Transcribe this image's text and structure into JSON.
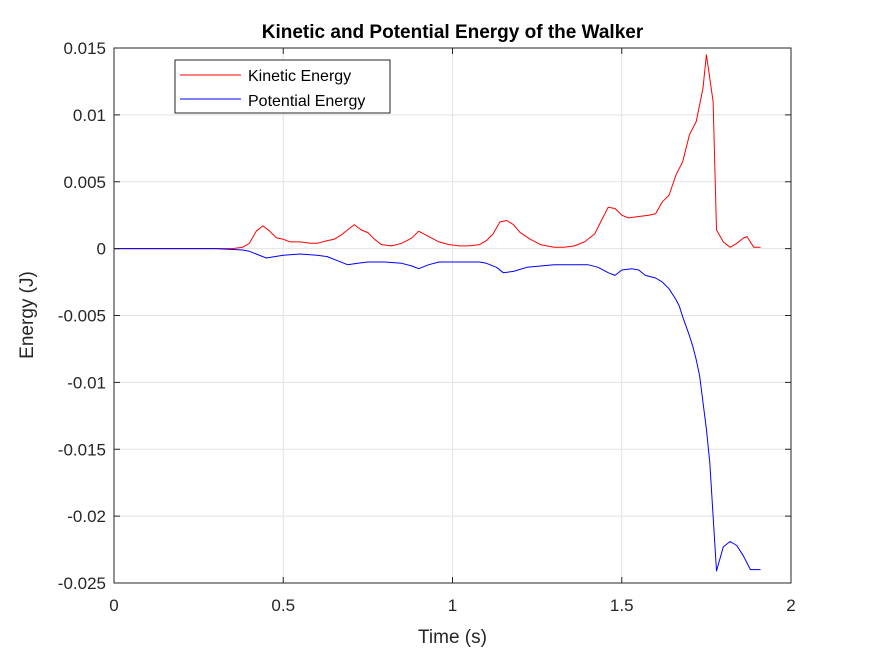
{
  "chart_data": {
    "type": "line",
    "title": "Kinetic and Potential Energy of the Walker",
    "xlabel": "Time (s)",
    "ylabel": "Energy (J)",
    "xlim": [
      0,
      2
    ],
    "ylim": [
      -0.025,
      0.015
    ],
    "xticks": [
      0,
      0.5,
      1,
      1.5,
      2
    ],
    "xtick_labels": [
      "0",
      "0.5",
      "1",
      "1.5",
      "2"
    ],
    "yticks": [
      -0.025,
      -0.02,
      -0.015,
      -0.01,
      -0.005,
      0,
      0.005,
      0.01,
      0.015
    ],
    "ytick_labels": [
      "-0.025",
      "-0.02",
      "-0.015",
      "-0.01",
      "-0.005",
      "0",
      "0.005",
      "0.01",
      "0.015"
    ],
    "grid": true,
    "legend_position": "top-left",
    "series": [
      {
        "name": "Kinetic Energy",
        "color": "#ff0000",
        "x": [
          0,
          0.1,
          0.2,
          0.3,
          0.35,
          0.38,
          0.4,
          0.42,
          0.44,
          0.46,
          0.48,
          0.5,
          0.52,
          0.55,
          0.58,
          0.6,
          0.63,
          0.65,
          0.67,
          0.69,
          0.71,
          0.73,
          0.75,
          0.77,
          0.79,
          0.82,
          0.85,
          0.88,
          0.9,
          0.93,
          0.96,
          0.99,
          1.02,
          1.05,
          1.08,
          1.1,
          1.12,
          1.14,
          1.16,
          1.18,
          1.2,
          1.23,
          1.26,
          1.3,
          1.33,
          1.36,
          1.39,
          1.42,
          1.44,
          1.46,
          1.48,
          1.5,
          1.52,
          1.55,
          1.58,
          1.6,
          1.62,
          1.64,
          1.66,
          1.68,
          1.7,
          1.72,
          1.74,
          1.75,
          1.77,
          1.78,
          1.8,
          1.82,
          1.84,
          1.86,
          1.87,
          1.89,
          1.91
        ],
        "y": [
          0,
          0,
          0,
          0,
          0,
          0.0001,
          0.0004,
          0.0013,
          0.0017,
          0.0013,
          0.0008,
          0.0007,
          0.0005,
          0.0005,
          0.0004,
          0.0004,
          0.0006,
          0.0007,
          0.001,
          0.0014,
          0.0018,
          0.0014,
          0.0012,
          0.0007,
          0.0003,
          0.0002,
          0.0004,
          0.0008,
          0.0013,
          0.0009,
          0.0005,
          0.0003,
          0.0002,
          0.0002,
          0.0003,
          0.0006,
          0.0011,
          0.002,
          0.0021,
          0.0018,
          0.0012,
          0.0007,
          0.0003,
          0.0001,
          0.0001,
          0.0002,
          0.0005,
          0.0011,
          0.0021,
          0.0031,
          0.003,
          0.0025,
          0.0023,
          0.0024,
          0.0025,
          0.0026,
          0.0035,
          0.004,
          0.0055,
          0.0065,
          0.0085,
          0.0095,
          0.012,
          0.0145,
          0.011,
          0.0014,
          0.0005,
          0.0001,
          0.0004,
          0.0008,
          0.0009,
          0.0001,
          0.0001
        ]
      },
      {
        "name": "Potential Energy",
        "color": "#0000ff",
        "x": [
          0,
          0.1,
          0.2,
          0.3,
          0.38,
          0.4,
          0.42,
          0.45,
          0.5,
          0.55,
          0.6,
          0.63,
          0.66,
          0.69,
          0.72,
          0.75,
          0.8,
          0.85,
          0.88,
          0.9,
          0.93,
          0.96,
          1.0,
          1.05,
          1.08,
          1.1,
          1.13,
          1.15,
          1.18,
          1.22,
          1.26,
          1.3,
          1.35,
          1.4,
          1.43,
          1.46,
          1.48,
          1.5,
          1.53,
          1.55,
          1.57,
          1.6,
          1.62,
          1.64,
          1.66,
          1.67,
          1.68,
          1.7,
          1.71,
          1.72,
          1.73,
          1.74,
          1.75,
          1.76,
          1.77,
          1.78,
          1.79,
          1.8,
          1.82,
          1.84,
          1.86,
          1.88,
          1.9,
          1.91
        ],
        "y": [
          0,
          0,
          0,
          0,
          -0.0001,
          -0.0002,
          -0.0004,
          -0.0007,
          -0.0005,
          -0.0004,
          -0.0005,
          -0.0006,
          -0.0009,
          -0.0012,
          -0.0011,
          -0.001,
          -0.001,
          -0.0011,
          -0.0013,
          -0.0015,
          -0.0012,
          -0.001,
          -0.001,
          -0.001,
          -0.001,
          -0.0011,
          -0.0014,
          -0.0018,
          -0.0017,
          -0.0014,
          -0.0013,
          -0.0012,
          -0.0012,
          -0.0012,
          -0.0014,
          -0.0018,
          -0.002,
          -0.0016,
          -0.0015,
          -0.0016,
          -0.002,
          -0.0022,
          -0.0025,
          -0.003,
          -0.0038,
          -0.0043,
          -0.0051,
          -0.0065,
          -0.0073,
          -0.0083,
          -0.0095,
          -0.0115,
          -0.0135,
          -0.016,
          -0.02,
          -0.0241,
          -0.0232,
          -0.0223,
          -0.0219,
          -0.0222,
          -0.023,
          -0.024,
          -0.024,
          -0.024
        ]
      }
    ]
  }
}
